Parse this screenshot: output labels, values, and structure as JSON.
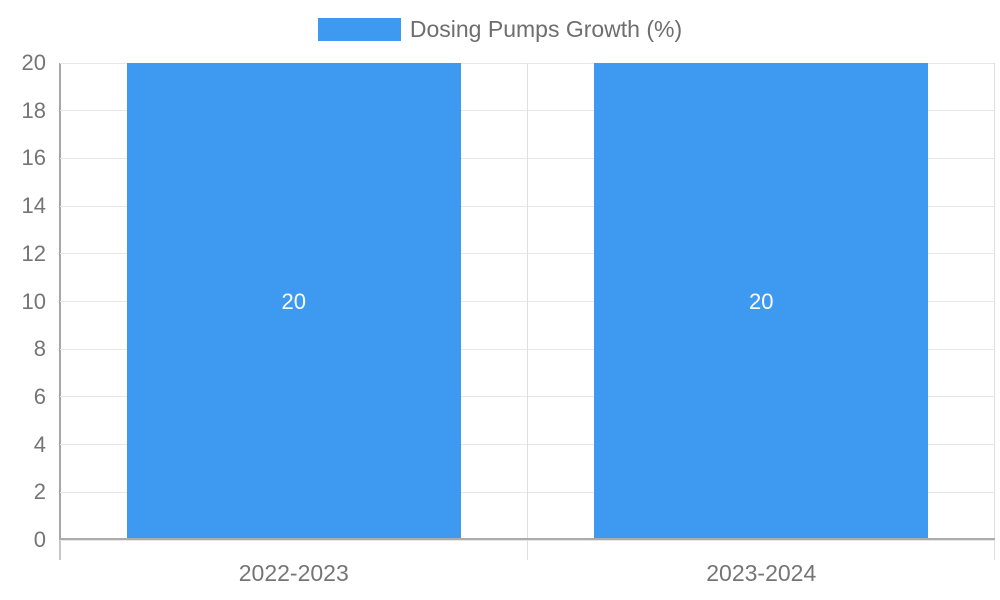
{
  "chart_data": {
    "type": "bar",
    "title": "",
    "categories": [
      "2022-2023",
      "2023-2024"
    ],
    "series": [
      {
        "name": "Dosing Pumps Growth (%)",
        "values": [
          20,
          20
        ]
      }
    ],
    "bar_value_labels": [
      "20",
      "20"
    ],
    "ylim": [
      0,
      20
    ],
    "yticks": [
      0,
      2,
      4,
      6,
      8,
      10,
      12,
      14,
      16,
      18,
      20
    ],
    "grid": true,
    "legend_position": "top-center",
    "colors": {
      "bar": "#3E99F0",
      "value_label_text": "#ffffff",
      "axis_label_text": "#757575",
      "legend_text": "#6e6e6e",
      "gridline": "#e7e7e7",
      "category_separator": "#e0e0e0",
      "axis_line": "#a6a6a6",
      "axis_tick": "#c6c6c6",
      "baseline": "#ababab"
    }
  }
}
